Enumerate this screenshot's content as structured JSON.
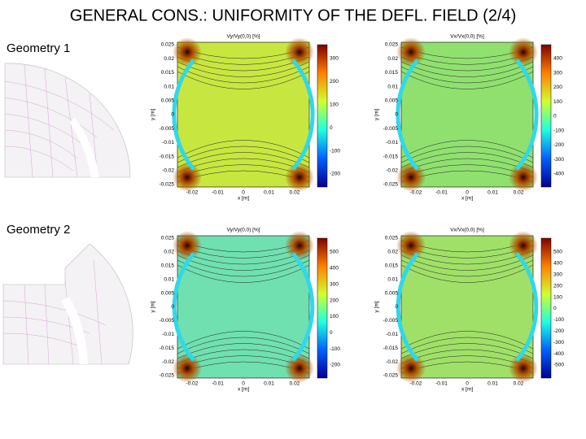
{
  "title": "GENERAL CONS.: UNIFORMITY OF THE DEFL. FIELD (2/4)",
  "rows": [
    {
      "label": "Geometry 1",
      "plots": [
        {
          "title": "Vy/Vy(0,0) [%]",
          "xlabel": "x [m]",
          "ylabel": "y [m]",
          "xticks": [
            "-0.02",
            "-0.01",
            "0",
            "0.01",
            "0.02"
          ],
          "yticks": [
            "0.025",
            "0.02",
            "0.015",
            "0.01",
            "0.005",
            "0",
            "-0.005",
            "-0.01",
            "-0.015",
            "-0.02",
            "-0.025"
          ],
          "colorbar": [
            "300",
            "200",
            "100",
            "0",
            "-100",
            "-200"
          ]
        },
        {
          "title": "Vx/Vx(0,0) [%]",
          "xlabel": "x [m]",
          "ylabel": "y [m]",
          "xticks": [
            "-0.02",
            "-0.01",
            "0",
            "0.01",
            "0.02"
          ],
          "yticks": [
            "0.025",
            "0.02",
            "0.015",
            "0.01",
            "0.005",
            "0",
            "-0.005",
            "-0.01",
            "-0.015",
            "-0.02",
            "-0.025"
          ],
          "colorbar": [
            "400",
            "300",
            "200",
            "100",
            "0",
            "-100",
            "-200",
            "-300",
            "-400"
          ]
        }
      ]
    },
    {
      "label": "Geometry 2",
      "plots": [
        {
          "title": "Vy/Vy(0,0) [%]",
          "xlabel": "x [m]",
          "ylabel": "y [m]",
          "xticks": [
            "-0.02",
            "-0.01",
            "0",
            "0.01",
            "0.02"
          ],
          "yticks": [
            "0.025",
            "0.02",
            "0.015",
            "0.01",
            "0.005",
            "0",
            "-0.005",
            "-0.01",
            "-0.015",
            "-0.02",
            "-0.025"
          ],
          "colorbar": [
            "500",
            "400",
            "300",
            "200",
            "100",
            "0",
            "-100",
            "-200"
          ]
        },
        {
          "title": "Vx/Vx(0,0) [%]",
          "xlabel": "x [m]",
          "ylabel": "y [m]",
          "xticks": [
            "-0.02",
            "-0.01",
            "0",
            "0.01",
            "0.02"
          ],
          "yticks": [
            "0.025",
            "0.02",
            "0.015",
            "0.01",
            "0.005",
            "0",
            "-0.005",
            "-0.01",
            "-0.015",
            "-0.02",
            "-0.025"
          ],
          "colorbar": [
            "500",
            "400",
            "300",
            "200",
            "100",
            "0",
            "-100",
            "-200",
            "-300",
            "-400",
            "-500"
          ]
        }
      ]
    }
  ]
}
